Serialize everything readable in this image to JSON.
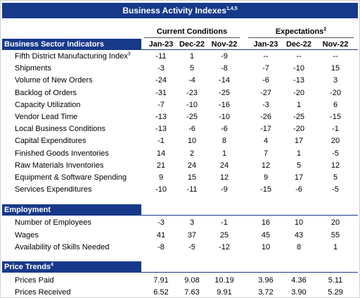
{
  "header": {
    "title": "Business Activity Indexes",
    "title_note": "1,4,5"
  },
  "column_groups": [
    {
      "label": "Current Conditions"
    },
    {
      "label": "Expectations",
      "note": "2"
    }
  ],
  "columns": [
    "Jan-23",
    "Dec-22",
    "Nov-22",
    "Jan-23",
    "Dec-22",
    "Nov-22"
  ],
  "sections": [
    {
      "title": "Business Sector Indicators",
      "rows": [
        {
          "label": "Fifth District Manufacturing Index",
          "note": "3",
          "values": [
            "-11",
            "1",
            "-9",
            "--",
            "--",
            "--"
          ]
        },
        {
          "label": "Shipments",
          "values": [
            "-3",
            "5",
            "-8",
            "-7",
            "-10",
            "15"
          ]
        },
        {
          "label": "Volume of New Orders",
          "values": [
            "-24",
            "-4",
            "-14",
            "-6",
            "-13",
            "3"
          ]
        },
        {
          "label": "Backlog of Orders",
          "values": [
            "-31",
            "-23",
            "-25",
            "-27",
            "-20",
            "-20"
          ]
        },
        {
          "label": "Capacity Utilization",
          "values": [
            "-7",
            "-10",
            "-16",
            "-3",
            "1",
            "6"
          ]
        },
        {
          "label": "Vendor Lead Time",
          "values": [
            "-13",
            "-25",
            "-10",
            "-26",
            "-25",
            "-15"
          ]
        },
        {
          "label": "Local Business Conditions",
          "values": [
            "-13",
            "-6",
            "-6",
            "-17",
            "-20",
            "-1"
          ]
        },
        {
          "label": "Capital Expenditures",
          "values": [
            "-1",
            "10",
            "8",
            "4",
            "17",
            "20"
          ]
        },
        {
          "label": "Finished Goods Inventories",
          "values": [
            "14",
            "2",
            "1",
            "7",
            "1",
            "-5"
          ]
        },
        {
          "label": "Raw Materials Inventories",
          "values": [
            "21",
            "24",
            "24",
            "12",
            "5",
            "12"
          ]
        },
        {
          "label": "Equipment & Software Spending",
          "values": [
            "9",
            "15",
            "12",
            "9",
            "17",
            "5"
          ]
        },
        {
          "label": "Services Expenditures",
          "values": [
            "-10",
            "-11",
            "-9",
            "-15",
            "-6",
            "-5"
          ]
        }
      ]
    },
    {
      "title": "Employment",
      "rows": [
        {
          "label": "Number of Employees",
          "values": [
            "-3",
            "3",
            "-1",
            "16",
            "10",
            "20"
          ]
        },
        {
          "label": "Wages",
          "values": [
            "41",
            "37",
            "25",
            "45",
            "43",
            "55"
          ]
        },
        {
          "label": "Availability of Skills Needed",
          "values": [
            "-8",
            "-5",
            "-12",
            "10",
            "8",
            "1"
          ]
        }
      ]
    },
    {
      "title": "Price Trends",
      "note": "4",
      "rows": [
        {
          "label": "Prices Paid",
          "values": [
            "7.91",
            "9.08",
            "10.19",
            "3.96",
            "4.36",
            "5.11"
          ]
        },
        {
          "label": "Prices Received",
          "values": [
            "6.52",
            "7.63",
            "9.91",
            "3.72",
            "3.90",
            "5.29"
          ]
        }
      ]
    }
  ]
}
